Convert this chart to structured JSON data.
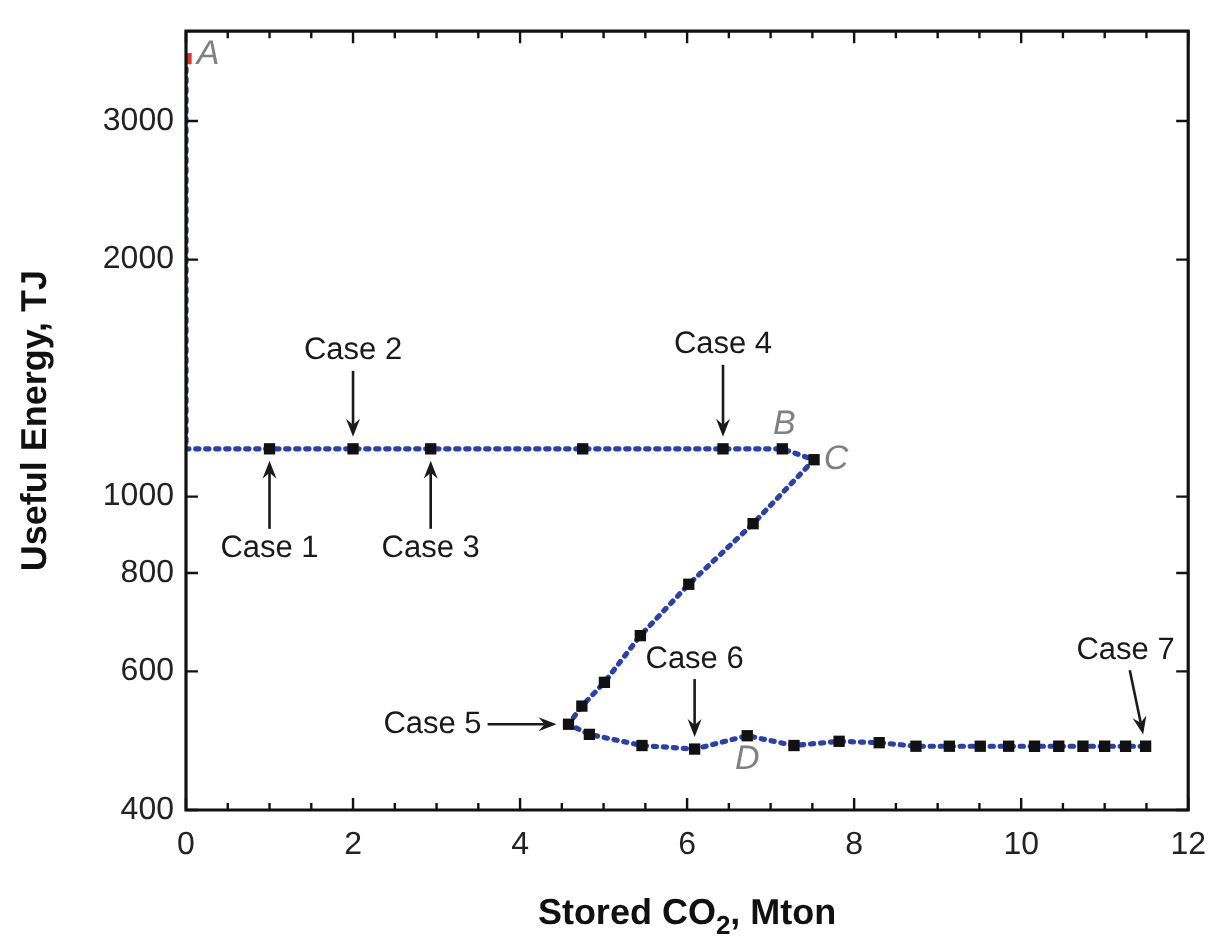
{
  "chart_data": {
    "type": "line",
    "xlabel": "Stored CO$_{2}$, Mton",
    "ylabel": "Useful Energy, TJ",
    "x": [
      0,
      0,
      1,
      2,
      2.93,
      4.75,
      6.43,
      7.14,
      7.52,
      6.79,
      6.02,
      5.44,
      5.01,
      4.74,
      4.58,
      4.83,
      5.46,
      6.09,
      6.72,
      7.28,
      7.82,
      8.3,
      8.74,
      9.14,
      9.51,
      9.85,
      10.16,
      10.45,
      10.74,
      11.0,
      11.25,
      11.49
    ],
    "series": [
      {
        "color": "#2a3fb0",
        "values": [
          3600,
          1150,
          1150,
          1150,
          1150,
          1150,
          1150,
          1150,
          1114,
          924,
          774,
          666,
          581,
          542,
          514,
          499,
          483,
          478,
          497,
          483,
          489,
          487,
          482,
          482,
          482,
          482,
          482,
          482,
          482,
          482,
          482,
          482
        ],
        "colors": [
          "#e8312a",
          null,
          "#111111",
          "#111111",
          "#111111",
          "#111111",
          "#111111",
          "#111111",
          "#111111",
          "#111111",
          "#111111",
          "#111111",
          "#111111",
          "#111111",
          "#111111",
          "#111111",
          "#111111",
          "#111111",
          "#111111",
          "#111111",
          "#111111",
          "#111111",
          "#111111",
          "#111111",
          "#111111",
          "#111111",
          "#111111",
          "#111111",
          "#111111",
          "#111111",
          "#111111",
          "#111111"
        ]
      }
    ],
    "marker": "square",
    "line_style": "dotted",
    "log": "y",
    "grid": false,
    "legend": false,
    "xlim": [
      0,
      12
    ],
    "xticks": [
      0,
      {
        "value": 0.5,
        "label": null
      },
      {
        "value": 1,
        "label": null
      },
      {
        "value": 1.5,
        "label": null
      },
      2,
      {
        "value": 2.5,
        "label": null
      },
      {
        "value": 3,
        "label": null
      },
      {
        "value": 3.5,
        "label": null
      },
      4,
      {
        "value": 4.5,
        "label": null
      },
      {
        "value": 5,
        "label": null
      },
      {
        "value": 5.5,
        "label": null
      },
      6,
      {
        "value": 6.5,
        "label": null
      },
      {
        "value": 7,
        "label": null
      },
      {
        "value": 7.5,
        "label": null
      },
      8,
      {
        "value": 8.5,
        "label": null
      },
      {
        "value": 9,
        "label": null
      },
      {
        "value": 9.5,
        "label": null
      },
      10,
      {
        "value": 10.5,
        "label": null
      },
      {
        "value": 11,
        "label": null
      },
      {
        "value": 11.5,
        "label": null
      },
      12
    ],
    "ylim": [
      400,
      3900
    ],
    "yticks": [
      400,
      600,
      800,
      1000,
      2000,
      3000
    ],
    "annotations": [
      {
        "text": "Case 1",
        "x": 1,
        "y": 1150
      },
      {
        "text": "Case 2",
        "x": 2,
        "y": 1150
      },
      {
        "text": "Case 3",
        "x": 2.93,
        "y": 1150
      },
      {
        "text": "Case 4",
        "x": 6.43,
        "y": 1150
      },
      {
        "text": "Case 5",
        "x": 4.58,
        "y": 514
      },
      {
        "text": "Case 6",
        "x": 6.09,
        "y": 478
      },
      {
        "text": "Case 7",
        "x": 11.49,
        "y": 482
      },
      {
        "text": "A",
        "x": 0,
        "y": 3600
      },
      {
        "text": "B",
        "x": 7.14,
        "y": 1150
      },
      {
        "text": "C",
        "x": 7.52,
        "y": 1114
      },
      {
        "text": "D",
        "x": 6.72,
        "y": 497
      }
    ]
  }
}
